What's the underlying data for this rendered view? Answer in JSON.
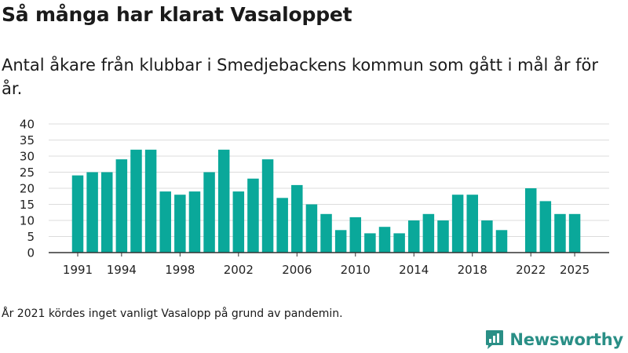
{
  "header": {
    "title": "Så många har klarat Vasaloppet",
    "subtitle": "Antal åkare från klubbar i Smedjebackens kommun som gått i mål år för år."
  },
  "footer": {
    "note": "År 2021 kördes inget vanligt Vasalopp på grund av pandemin.",
    "brand": "Newsworthy"
  },
  "colors": {
    "bar": "#0aa89a",
    "grid": "#dcdcdc",
    "axis": "#333333",
    "brand": "#2a8f86"
  },
  "chart_data": {
    "type": "bar",
    "x": [
      1991,
      1992,
      1993,
      1994,
      1995,
      1996,
      1997,
      1998,
      1999,
      2000,
      2001,
      2002,
      2003,
      2004,
      2005,
      2006,
      2007,
      2008,
      2009,
      2010,
      2011,
      2012,
      2013,
      2014,
      2015,
      2016,
      2017,
      2018,
      2019,
      2020,
      2021,
      2022,
      2023,
      2024,
      2025
    ],
    "values": [
      24,
      25,
      25,
      29,
      32,
      32,
      19,
      18,
      19,
      25,
      32,
      19,
      23,
      29,
      17,
      21,
      15,
      12,
      7,
      11,
      6,
      8,
      6,
      10,
      12,
      10,
      18,
      18,
      10,
      7,
      null,
      20,
      16,
      12,
      12
    ],
    "x_ticks": [
      "1991",
      "1994",
      "1998",
      "2002",
      "2006",
      "2010",
      "2014",
      "2018",
      "2022",
      "2025"
    ],
    "y_ticks": [
      "0",
      "5",
      "10",
      "15",
      "20",
      "25",
      "30",
      "35",
      "40"
    ],
    "ylim": [
      0,
      40
    ],
    "grid": true,
    "legend": "none"
  }
}
